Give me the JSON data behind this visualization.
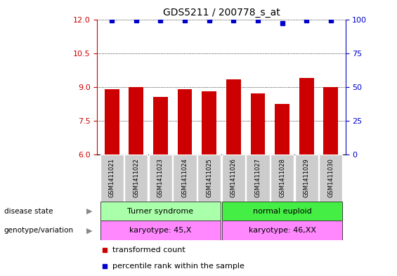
{
  "title": "GDS5211 / 200778_s_at",
  "samples": [
    "GSM1411021",
    "GSM1411022",
    "GSM1411023",
    "GSM1411024",
    "GSM1411025",
    "GSM1411026",
    "GSM1411027",
    "GSM1411028",
    "GSM1411029",
    "GSM1411030"
  ],
  "red_values": [
    8.9,
    9.0,
    8.55,
    8.9,
    8.8,
    9.35,
    8.7,
    8.25,
    9.4,
    9.0
  ],
  "blue_values": [
    99,
    99,
    99,
    99,
    99,
    99,
    99,
    97,
    99,
    99
  ],
  "ylim_left": [
    6,
    12
  ],
  "ylim_right": [
    0,
    100
  ],
  "yticks_left": [
    6,
    7.5,
    9,
    10.5,
    12
  ],
  "yticks_right": [
    0,
    25,
    50,
    75,
    100
  ],
  "bar_color": "#cc0000",
  "dot_color": "#0000cc",
  "bar_width": 0.6,
  "disease_state_labels": [
    "Turner syndrome",
    "normal euploid"
  ],
  "disease_state_colors": [
    "#aaffaa",
    "#44ee44"
  ],
  "genotype_labels": [
    "karyotype: 45,X",
    "karyotype: 46,XX"
  ],
  "genotype_color": "#ff88ff",
  "group1_samples": [
    0,
    1,
    2,
    3,
    4
  ],
  "group2_samples": [
    5,
    6,
    7,
    8,
    9
  ],
  "legend_red_label": "transformed count",
  "legend_blue_label": "percentile rank within the sample",
  "background_color": "#ffffff",
  "title_fontsize": 10,
  "tick_fontsize": 8,
  "sample_box_color": "#cccccc",
  "sample_box_edge": "#ffffff"
}
